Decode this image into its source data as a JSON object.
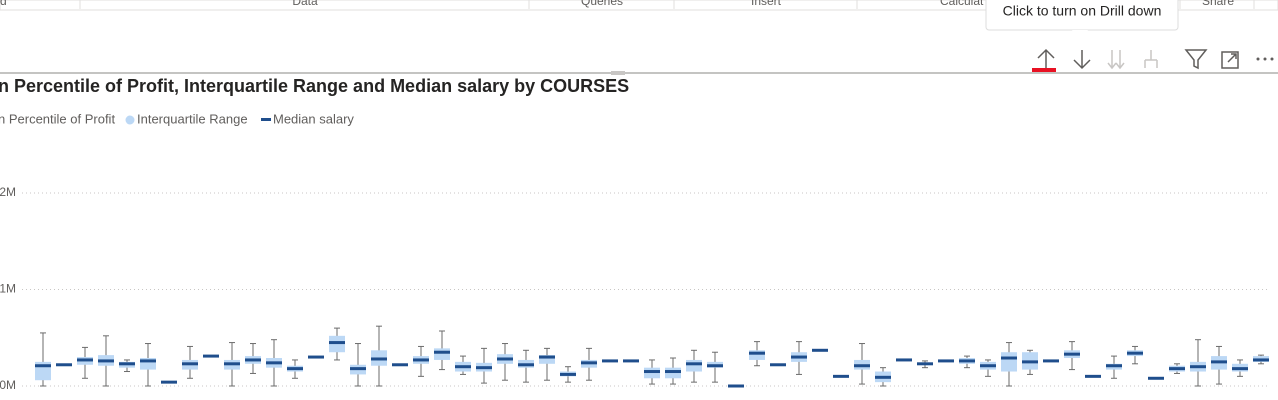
{
  "ribbon": {
    "tabs": [
      "d",
      "Data",
      "Queries",
      "Insert",
      "Calculat",
      "Share"
    ]
  },
  "tooltip": "Click to turn on Drill down",
  "chart_data": {
    "type": "boxplot",
    "title": "n Percentile of Profit, Interquartile Range and Median salary by COURSES",
    "ylim": [
      0,
      2.5
    ],
    "yticks": [
      {
        "value": 0,
        "label": "0M"
      },
      {
        "value": 1,
        "label": "1M"
      },
      {
        "value": 2,
        "label": "2M"
      }
    ],
    "grid": true,
    "series": [
      {
        "name": "n Percentile of Profit",
        "color": "#6b6b6b",
        "low": [
          0,
          null,
          0.08,
          0,
          0.15,
          0,
          null,
          0.08,
          null,
          0,
          0.13,
          0,
          0.08,
          null,
          0.27,
          0,
          0,
          null,
          0.1,
          0.17,
          0.12,
          0.03,
          0.06,
          0.04,
          0.06,
          0.04,
          0.06,
          null,
          null,
          0.02,
          0.02,
          0.04,
          0.04,
          null,
          0.21,
          null,
          0.12,
          null,
          null,
          0.02,
          0,
          null,
          0.19,
          null,
          0.19,
          0.1,
          0,
          0.12,
          null,
          0.17,
          null,
          0.08,
          0.23,
          null,
          0.13,
          0,
          0.02,
          0.1,
          0.23
        ],
        "high": [
          0.55,
          null,
          0.4,
          0.52,
          0.27,
          0.44,
          null,
          0.41,
          null,
          0.45,
          0.44,
          0.48,
          0.27,
          null,
          0.6,
          0.44,
          0.62,
          null,
          0.41,
          0.57,
          0.31,
          0.39,
          0.44,
          0.37,
          0.39,
          0.2,
          0.39,
          null,
          null,
          0.27,
          0.29,
          0.37,
          0.35,
          null,
          0.46,
          null,
          0.46,
          null,
          null,
          0.44,
          0.19,
          null,
          0.26,
          null,
          0.31,
          0.27,
          0.45,
          0.37,
          null,
          0.46,
          null,
          0.31,
          0.41,
          null,
          0.23,
          0.48,
          0.41,
          0.27,
          0.32
        ]
      },
      {
        "name": "Interquartile Range",
        "color": "#bcd8f5",
        "q1": [
          0.06,
          null,
          0.22,
          0.21,
          0.19,
          0.17,
          null,
          0.17,
          null,
          0.17,
          0.23,
          0.19,
          0.15,
          null,
          0.35,
          0.12,
          0.21,
          null,
          0.23,
          0.27,
          0.15,
          0.15,
          0.23,
          0.19,
          0.23,
          0.1,
          0.19,
          null,
          null,
          0.08,
          0.08,
          0.15,
          0.19,
          null,
          0.27,
          null,
          0.25,
          null,
          null,
          0.17,
          0.04,
          null,
          null,
          null,
          0.23,
          0.17,
          0.15,
          0.17,
          null,
          0.29,
          null,
          0.17,
          0.31,
          null,
          0.15,
          0.15,
          0.17,
          0.15,
          0.25
        ],
        "q3": [
          0.25,
          null,
          0.3,
          0.32,
          0.25,
          0.29,
          null,
          0.27,
          null,
          0.27,
          0.31,
          0.29,
          0.21,
          null,
          0.52,
          0.22,
          0.37,
          null,
          0.31,
          0.39,
          0.25,
          0.24,
          0.33,
          0.27,
          0.32,
          0.15,
          0.27,
          null,
          null,
          0.19,
          0.19,
          0.27,
          0.25,
          null,
          0.37,
          null,
          0.35,
          null,
          null,
          0.27,
          0.15,
          null,
          null,
          null,
          0.29,
          0.25,
          0.35,
          0.35,
          null,
          0.37,
          null,
          0.23,
          0.37,
          null,
          0.21,
          0.25,
          0.31,
          0.23,
          0.31
        ]
      },
      {
        "name": "Median salary",
        "color": "#1f4e8c",
        "values": [
          0.21,
          0.22,
          0.27,
          0.26,
          0.23,
          0.26,
          0.04,
          0.23,
          0.31,
          0.23,
          0.27,
          0.24,
          0.18,
          0.3,
          0.45,
          0.18,
          0.28,
          0.22,
          0.27,
          0.35,
          0.2,
          0.19,
          0.28,
          0.22,
          0.3,
          0.12,
          0.24,
          0.26,
          0.26,
          0.15,
          0.15,
          0.23,
          0.21,
          0,
          0.34,
          0.22,
          0.3,
          0.37,
          0.1,
          0.21,
          0.09,
          0.27,
          0.23,
          0.26,
          0.26,
          0.21,
          0.29,
          0.25,
          0.26,
          0.33,
          0.1,
          0.21,
          0.34,
          0.08,
          0.18,
          0.2,
          0.25,
          0.18,
          0.27
        ]
      }
    ]
  }
}
